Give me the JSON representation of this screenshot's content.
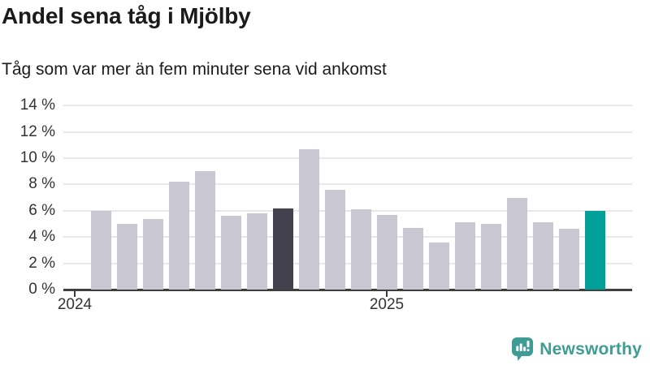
{
  "chart_data": {
    "type": "bar",
    "title": "Andel sena tåg i Mjölby",
    "subtitle": "Tåg som var mer än fem minuter sena vid ankomst",
    "unit": "%",
    "x": [
      "2024-02",
      "2024-03",
      "2024-04",
      "2024-05",
      "2024-06",
      "2024-07",
      "2024-08",
      "2024-09",
      "2024-10",
      "2024-11",
      "2024-12",
      "2025-01",
      "2025-02",
      "2025-03",
      "2025-04",
      "2025-05",
      "2025-06",
      "2025-07",
      "2025-08",
      "2025-09"
    ],
    "values": [
      6.0,
      5.0,
      5.4,
      8.2,
      9.0,
      5.6,
      5.8,
      6.2,
      10.7,
      7.6,
      6.1,
      5.7,
      4.7,
      3.6,
      5.1,
      5.0,
      7.0,
      5.1,
      4.6,
      6.0
    ],
    "dark_bar_index": 7,
    "accent_bar_index": 19,
    "bar_colors": {
      "default": "#c9c7d1",
      "highlight_dark": "#43414e",
      "highlight_accent": "#00a099"
    },
    "ylim": [
      0,
      14
    ],
    "yticks": [
      {
        "value": 14,
        "label": "14 %"
      },
      {
        "value": 12,
        "label": "12 %"
      },
      {
        "value": 10,
        "label": "10 %"
      },
      {
        "value": 8,
        "label": "8 %"
      },
      {
        "value": 6,
        "label": "6 %"
      },
      {
        "value": 4,
        "label": "4 %"
      },
      {
        "value": 2,
        "label": "2 %"
      },
      {
        "value": 0,
        "label": "0 %"
      }
    ],
    "xticks": [
      {
        "label": "2024",
        "month_index": 0
      },
      {
        "label": "2025",
        "month_index": 12
      }
    ],
    "grid": true,
    "legend": "none"
  },
  "footer": {
    "brand_label": "Newsworthy",
    "brand_color": "#3e9c94",
    "logo_icon": "bar-chart-speech-bubble-icon"
  }
}
